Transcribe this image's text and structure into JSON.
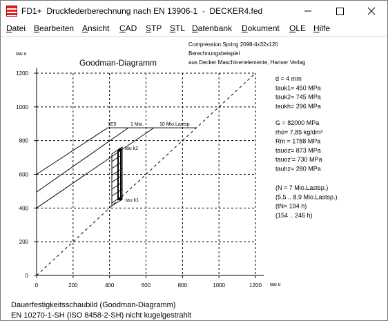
{
  "window": {
    "title": "FD1+  Druckfederberechnung nach EN 13906-1  -  DECKER4.fed"
  },
  "menu": [
    "Datei",
    "Bearbeiten",
    "Ansicht",
    "CAD",
    "STP",
    "STL",
    "Datenbank",
    "Dokument",
    "OLE",
    "Hilfe"
  ],
  "header": [
    "Compression Spring  2098-4x32x120",
    "Berechnungsbeispiel",
    "aus Decker Maschinenelemente, Hanser Verlag"
  ],
  "properties": [
    [
      "d  = 4 mm",
      "tauk1=  450 MPa",
      "tauk2=  745 MPa",
      "taukh=  296 MPa"
    ],
    [
      "G  =  82000 MPa",
      "rho=  7,85 kg/dm³",
      "Rm =  1788 MPa",
      "tauoz=  873 MPa",
      "tauoz'=  730 MPa",
      "tauhz=  280 MPa"
    ],
    [
      "(N = 7 Mio.Lastsp.)",
      "(5,5 .. 8,9 Mio.Lastsp.)",
      "(tN= 194 h)",
      "(154 .. 246 h)"
    ]
  ],
  "footer": [
    "Dauerfestigkeitsschaubild (Goodman-Diagramm)",
    "EN 10270-1-SH (ISO 8458-2-SH) nicht kugelgestrahlt"
  ],
  "chart_data": {
    "type": "line",
    "title": "Goodman-Diagramm",
    "xlabel": "tau u",
    "ylabel": "tau o",
    "xlim": [
      0,
      1200
    ],
    "ylim": [
      0,
      1200
    ],
    "xticks": [
      0,
      200,
      400,
      600,
      800,
      1000,
      1200
    ],
    "yticks": [
      0,
      200,
      400,
      600,
      800,
      1000,
      1200
    ],
    "grid": true,
    "series": [
      {
        "color": "#000000",
        "x": [
          0,
          390,
          875
        ],
        "values": [
          600,
          876,
          876
        ]
      },
      {
        "color": "#000000",
        "x": [
          0,
          503
        ],
        "values": [
          495,
          876
        ]
      },
      {
        "color": "#000000",
        "x": [
          0,
          643
        ],
        "values": [
          400,
          876
        ]
      },
      {
        "color": "#000000",
        "dashed": true,
        "x": [
          0,
          1200
        ],
        "values": [
          0,
          1200
        ]
      }
    ],
    "annotations": [
      "1E5",
      "1 Mio.",
      "10 Mio.Lastsp.",
      "tau k2",
      "tau k1"
    ]
  }
}
